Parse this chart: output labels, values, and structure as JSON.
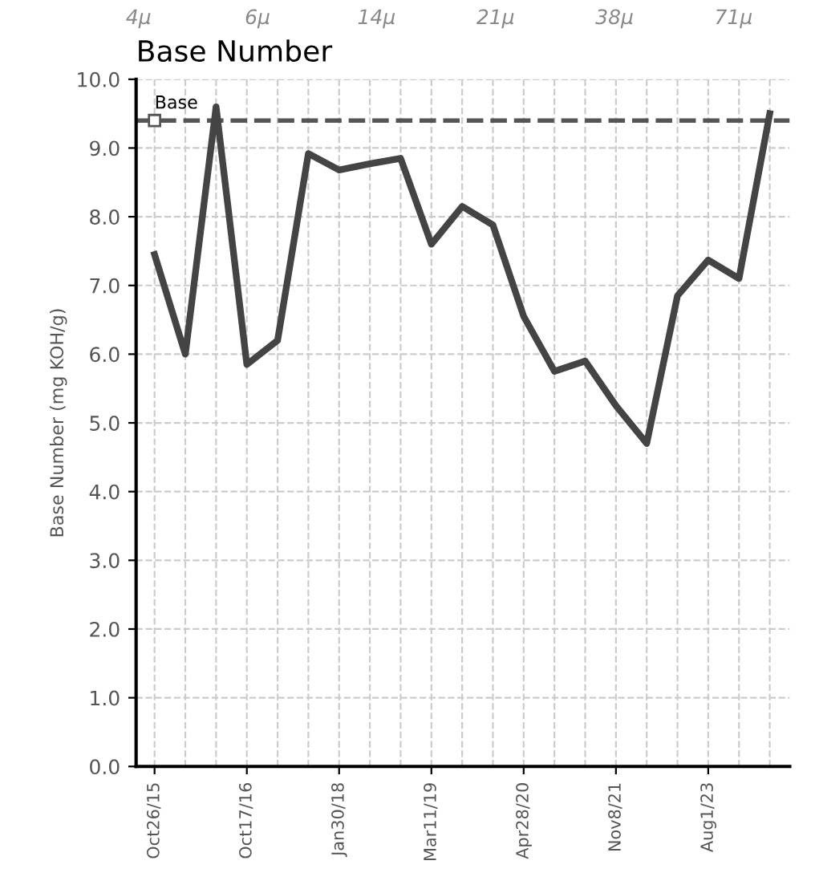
{
  "chart_data": {
    "type": "line",
    "title": "Base Number",
    "ylabel": "Base Number (mg KOH/g)",
    "categories": [
      "Oct26/15",
      null,
      null,
      "Oct17/16",
      null,
      null,
      "Jan30/18",
      null,
      null,
      "Mar11/19",
      null,
      null,
      "Apr28/20",
      null,
      null,
      "Nov8/21",
      null,
      null,
      "Aug1/23",
      null,
      null
    ],
    "series": [
      {
        "color": "#444444",
        "values": [
          7.45,
          6.0,
          9.6,
          5.85,
          6.2,
          8.92,
          8.68,
          8.77,
          8.85,
          7.6,
          8.15,
          7.88,
          6.55,
          5.75,
          5.9,
          5.25,
          4.7,
          6.85,
          7.37,
          7.1,
          9.5
        ]
      }
    ],
    "ylim": [
      0,
      10
    ],
    "yticks": [
      {
        "value": 0,
        "label": "0.0"
      },
      {
        "value": 1,
        "label": "1.0"
      },
      {
        "value": 2,
        "label": "2.0"
      },
      {
        "value": 3,
        "label": "3.0"
      },
      {
        "value": 4,
        "label": "4.0"
      },
      {
        "value": 5,
        "label": "5.0"
      },
      {
        "value": 6,
        "label": "6.0"
      },
      {
        "value": 7,
        "label": "7.0"
      },
      {
        "value": 8,
        "label": "8.0"
      },
      {
        "value": 9,
        "label": "9.0"
      },
      {
        "value": 10,
        "label": "10.0"
      }
    ],
    "ref_lines": [
      {
        "axis": "y",
        "value": 9.4,
        "label": "Base",
        "color": "#555555",
        "line_style": "dashed"
      }
    ],
    "annotations": [
      "4μ",
      "6μ",
      "14μ",
      "21μ",
      "38μ",
      "71μ"
    ],
    "grid": true,
    "legend": false,
    "marker": "none",
    "line_style": "solid"
  }
}
